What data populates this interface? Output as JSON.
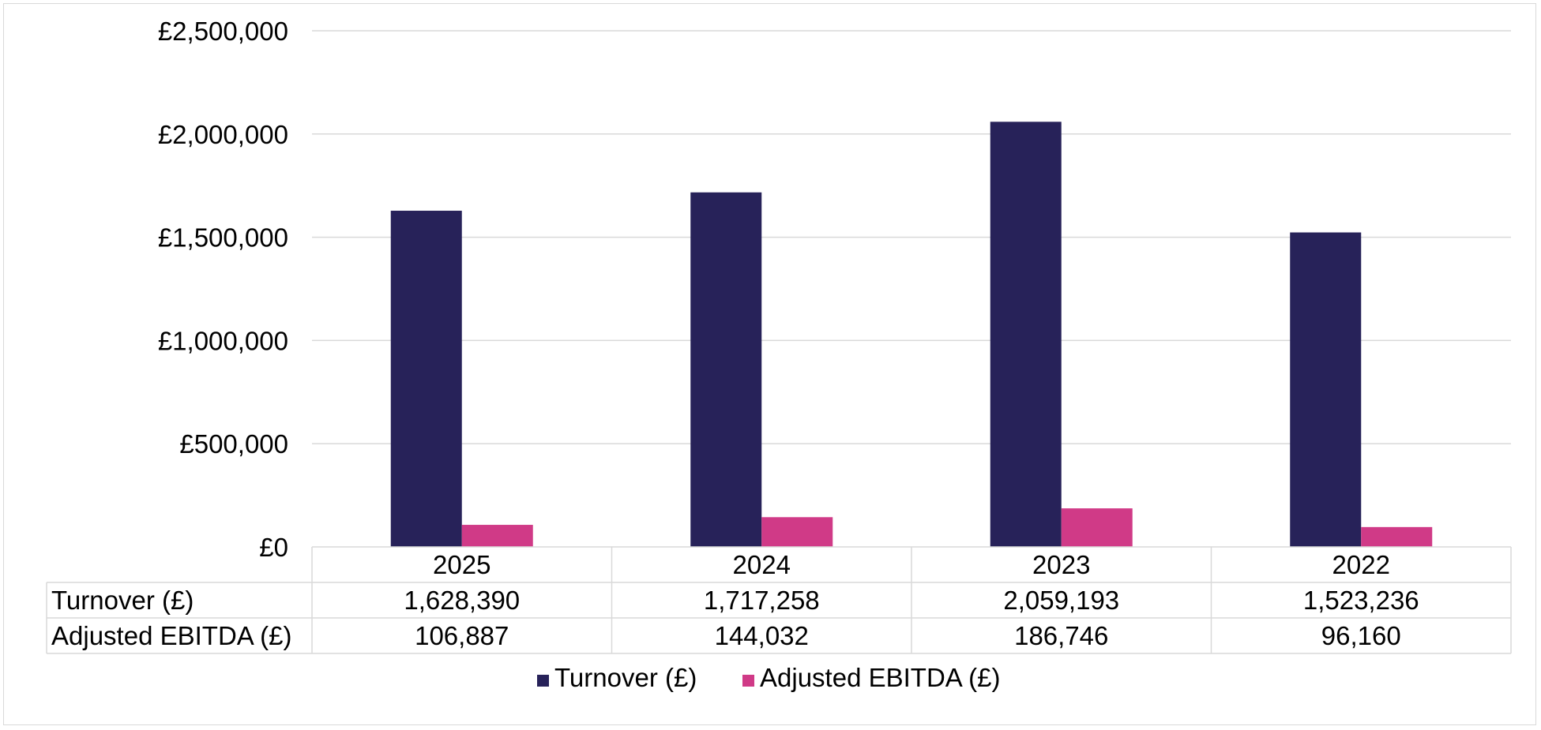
{
  "chart_data": {
    "type": "bar",
    "categories": [
      "2025",
      "2024",
      "2023",
      "2022"
    ],
    "series": [
      {
        "name": "Turnover (£)",
        "values": [
          1628390,
          1717258,
          2059193,
          1523236
        ],
        "display": [
          "1,628,390",
          "1,717,258",
          "2,059,193",
          "1,523,236"
        ],
        "color": "#272259"
      },
      {
        "name": "Adjusted EBITDA (£)",
        "values": [
          106887,
          144032,
          186746,
          96160
        ],
        "display": [
          "106,887",
          "144,032",
          "186,746",
          "96,160"
        ],
        "color": "#d03a87"
      }
    ],
    "yticks": [
      {
        "value": 0,
        "label": "£0"
      },
      {
        "value": 500000,
        "label": "£500,000"
      },
      {
        "value": 1000000,
        "label": "£1,000,000"
      },
      {
        "value": 1500000,
        "label": "£1,500,000"
      },
      {
        "value": 2000000,
        "label": "£2,000,000"
      },
      {
        "value": 2500000,
        "label": "£2,500,000"
      }
    ],
    "ylim": [
      0,
      2500000
    ],
    "title": "",
    "xlabel": "",
    "ylabel": "",
    "grid": true,
    "legend": "bottom",
    "data_table": true
  }
}
